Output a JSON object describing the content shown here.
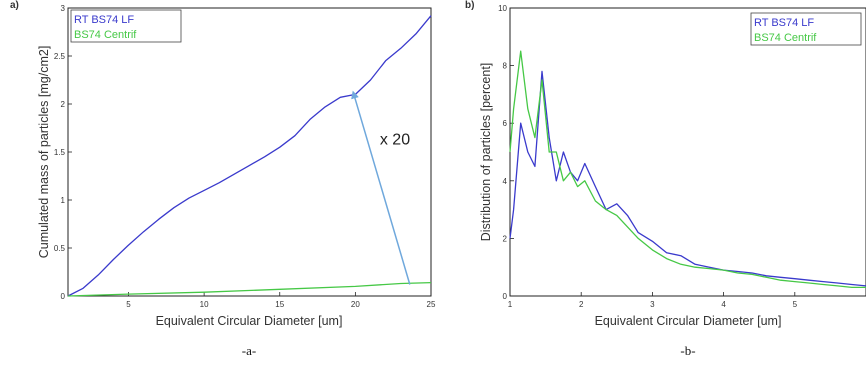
{
  "colors": {
    "series_a": "#3a3acc",
    "series_b": "#46c846",
    "arrow": "#6fa8dc"
  },
  "chart_data": [
    {
      "type": "line",
      "panel_label": "a)",
      "caption": "-a-",
      "xlabel": "Equivalent Circular Diameter [um]",
      "ylabel": "Cumulated mass of particles [mg/cm2]",
      "xlim": [
        1,
        25
      ],
      "ylim": [
        0,
        3
      ],
      "xticks": [
        5,
        10,
        15,
        20,
        25
      ],
      "yticks": [
        0,
        0.5,
        1,
        1.5,
        2,
        2.5,
        3
      ],
      "legend": {
        "placement": "top-left"
      },
      "grid": false,
      "annotation": {
        "text": "x 20",
        "arrow_from": [
          23.6,
          0.12
        ],
        "arrow_to": [
          19.9,
          2.1
        ]
      },
      "series": [
        {
          "name": "RT BS74 LF",
          "color": "#3a3acc",
          "x": [
            1,
            2,
            3,
            4,
            5,
            6,
            7,
            8,
            9,
            10,
            11,
            12,
            13,
            14,
            15,
            16,
            17,
            18,
            19,
            20,
            21,
            22,
            23,
            24,
            25
          ],
          "y": [
            0,
            0.08,
            0.22,
            0.38,
            0.53,
            0.67,
            0.8,
            0.92,
            1.02,
            1.1,
            1.18,
            1.27,
            1.36,
            1.45,
            1.55,
            1.67,
            1.84,
            1.97,
            2.07,
            2.1,
            2.25,
            2.45,
            2.58,
            2.73,
            2.92
          ]
        },
        {
          "name": "BS74 Centrif",
          "color": "#46c846",
          "x": [
            1,
            5,
            10,
            15,
            20,
            23,
            25
          ],
          "y": [
            0,
            0.02,
            0.04,
            0.07,
            0.1,
            0.13,
            0.14
          ]
        }
      ]
    },
    {
      "type": "line",
      "panel_label": "b)",
      "caption": "-b-",
      "xlabel": "Equivalent Circular Diameter [um]",
      "ylabel": "Distribution of particles [percent]",
      "xlim": [
        1,
        6
      ],
      "ylim": [
        0,
        10
      ],
      "xticks": [
        1,
        2,
        3,
        4,
        5
      ],
      "yticks": [
        0,
        2,
        4,
        6,
        8,
        10
      ],
      "legend": {
        "placement": "top-right"
      },
      "grid": false,
      "series": [
        {
          "name": "RT BS74 LF",
          "color": "#3a3acc",
          "x": [
            1.0,
            1.05,
            1.15,
            1.25,
            1.35,
            1.45,
            1.55,
            1.65,
            1.75,
            1.85,
            1.95,
            2.05,
            2.2,
            2.35,
            2.5,
            2.65,
            2.8,
            3.0,
            3.2,
            3.4,
            3.6,
            3.8,
            4.0,
            4.2,
            4.4,
            4.6,
            4.8,
            5.0,
            5.2,
            5.4,
            5.6,
            5.8,
            6.0
          ],
          "y": [
            2.0,
            3.0,
            6.0,
            5.0,
            4.5,
            7.8,
            5.5,
            4.0,
            5.0,
            4.3,
            4.0,
            4.6,
            3.8,
            3.0,
            3.2,
            2.8,
            2.2,
            1.9,
            1.5,
            1.4,
            1.1,
            1.0,
            0.9,
            0.85,
            0.8,
            0.7,
            0.65,
            0.6,
            0.55,
            0.5,
            0.45,
            0.4,
            0.35
          ]
        },
        {
          "name": "BS74 Centrif",
          "color": "#46c846",
          "x": [
            1.0,
            1.05,
            1.15,
            1.25,
            1.35,
            1.45,
            1.55,
            1.65,
            1.75,
            1.85,
            1.95,
            2.05,
            2.2,
            2.35,
            2.5,
            2.65,
            2.8,
            3.0,
            3.2,
            3.4,
            3.6,
            3.8,
            4.0,
            4.2,
            4.4,
            4.6,
            4.8,
            5.0,
            5.2,
            5.4,
            5.6,
            5.8,
            6.0
          ],
          "y": [
            5.0,
            6.5,
            8.5,
            6.5,
            5.5,
            7.5,
            5.0,
            5.0,
            4.0,
            4.3,
            3.8,
            4.0,
            3.3,
            3.0,
            2.8,
            2.4,
            2.0,
            1.6,
            1.3,
            1.1,
            1.0,
            0.95,
            0.9,
            0.8,
            0.75,
            0.65,
            0.55,
            0.5,
            0.45,
            0.4,
            0.35,
            0.3,
            0.3
          ]
        }
      ]
    }
  ]
}
